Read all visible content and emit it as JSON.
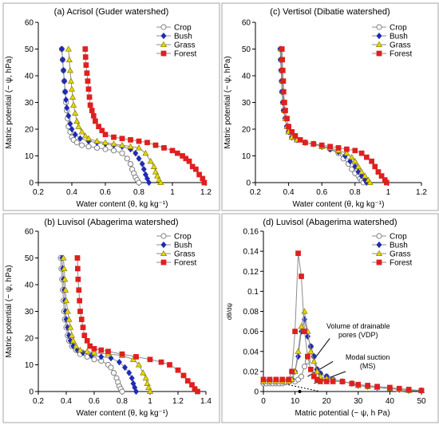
{
  "colors": {
    "crop": "#7f7f7f",
    "bush": "#1f2bb5",
    "grass": "#e5d800",
    "forest": "#e01f1f",
    "line": "#8c8c8c",
    "frame": "#a6a6a6"
  },
  "chart_data": [
    {
      "id": "a",
      "type": "line",
      "title": "(a) Acrisol (Guder watershed)",
      "xlabel": "Water content (θ, kg kg⁻¹)",
      "ylabel": "Matric potential  (− ψ, hPa)",
      "xlim": [
        0.2,
        1.2
      ],
      "ylim": [
        0,
        60
      ],
      "xticks": [
        "0.2",
        "0.4",
        "0.6",
        "0.8",
        "1",
        "1.2"
      ],
      "xtick_values": [
        0.2,
        0.4,
        0.6,
        0.8,
        1.0,
        1.2
      ],
      "yticks": [
        "0",
        "10",
        "20",
        "30",
        "40",
        "50",
        "60"
      ],
      "ytick_values": [
        0,
        10,
        20,
        30,
        40,
        50,
        60
      ],
      "legend_position": "top-right",
      "series": [
        {
          "name": "Crop",
          "marker": "circle",
          "x": [
            0.34,
            0.345,
            0.35,
            0.355,
            0.36,
            0.365,
            0.37,
            0.375,
            0.38,
            0.39,
            0.4,
            0.41,
            0.43,
            0.46,
            0.5,
            0.55,
            0.6,
            0.65,
            0.7,
            0.73,
            0.75,
            0.76,
            0.77,
            0.78,
            0.79,
            0.8
          ],
          "y": [
            50,
            46,
            42,
            38,
            34,
            30,
            27,
            24,
            21,
            19,
            17,
            16,
            15,
            14,
            13.5,
            13,
            12.5,
            12,
            11,
            9,
            7,
            5,
            3.5,
            2,
            1,
            0
          ]
        },
        {
          "name": "Bush",
          "marker": "diamond",
          "x": [
            0.34,
            0.345,
            0.35,
            0.355,
            0.36,
            0.365,
            0.37,
            0.38,
            0.39,
            0.4,
            0.42,
            0.45,
            0.5,
            0.55,
            0.6,
            0.65,
            0.7,
            0.75,
            0.78,
            0.8,
            0.82,
            0.83,
            0.84,
            0.85,
            0.86
          ],
          "y": [
            50,
            46,
            42,
            38,
            34,
            31,
            28,
            25,
            22,
            20,
            18,
            16.5,
            15.5,
            15,
            14.5,
            14,
            13.5,
            12.5,
            11,
            9,
            7,
            5,
            3,
            1.5,
            0
          ]
        },
        {
          "name": "Grass",
          "marker": "triangle",
          "x": [
            0.38,
            0.385,
            0.39,
            0.395,
            0.4,
            0.405,
            0.41,
            0.42,
            0.43,
            0.44,
            0.46,
            0.48,
            0.5,
            0.55,
            0.6,
            0.65,
            0.7,
            0.75,
            0.8,
            0.84,
            0.87,
            0.89,
            0.9,
            0.91,
            0.92,
            0.93
          ],
          "y": [
            50,
            46,
            42,
            38,
            35,
            32,
            29,
            26,
            23,
            21,
            19,
            17.5,
            16.5,
            15.5,
            15,
            14.5,
            14,
            13.5,
            13,
            11,
            8,
            6,
            4,
            2.5,
            1,
            0
          ]
        },
        {
          "name": "Forest",
          "marker": "square",
          "x": [
            0.48,
            0.482,
            0.485,
            0.49,
            0.495,
            0.5,
            0.505,
            0.51,
            0.52,
            0.53,
            0.54,
            0.56,
            0.58,
            0.6,
            0.65,
            0.7,
            0.75,
            0.8,
            0.85,
            0.9,
            0.95,
            1.0,
            1.03,
            1.06,
            1.08,
            1.1,
            1.12,
            1.14,
            1.16,
            1.18,
            1.19
          ],
          "y": [
            50,
            47,
            44,
            41,
            38,
            35,
            32,
            29,
            27,
            25,
            23,
            21,
            19.5,
            18,
            17,
            16.5,
            16,
            15.5,
            15,
            14,
            13,
            12,
            11,
            10,
            9,
            8,
            6,
            5,
            3,
            1.5,
            0
          ]
        }
      ]
    },
    {
      "id": "c",
      "type": "line",
      "title": "(c) Vertisol (Dibatie watershed)",
      "xlabel": "Water content (θ, kg kg⁻¹)",
      "ylabel": "Matric potential  (− ψ, hPa)",
      "xlim": [
        0.2,
        1.2
      ],
      "ylim": [
        0,
        60
      ],
      "xticks": [
        "0.2",
        "0.4",
        "0.6",
        "0.8",
        "1",
        "1.2"
      ],
      "xtick_values": [
        0.2,
        0.4,
        0.6,
        0.8,
        1.0,
        1.2
      ],
      "yticks": [
        "0",
        "10",
        "20",
        "30",
        "40",
        "50",
        "60"
      ],
      "ytick_values": [
        0,
        10,
        20,
        30,
        40,
        50,
        60
      ],
      "legend_position": "top-right",
      "series": [
        {
          "name": "Crop",
          "marker": "circle",
          "x": [
            0.35,
            0.352,
            0.355,
            0.358,
            0.36,
            0.365,
            0.37,
            0.38,
            0.39,
            0.4,
            0.42,
            0.45,
            0.5,
            0.55,
            0.6,
            0.65,
            0.7,
            0.73,
            0.76,
            0.78,
            0.8,
            0.82,
            0.83,
            0.84,
            0.85
          ],
          "y": [
            50,
            46,
            42,
            38,
            34,
            30,
            27,
            24,
            21,
            19,
            17,
            16,
            15,
            14.5,
            13.5,
            12.5,
            11,
            9,
            7,
            5,
            3.5,
            2.5,
            1.5,
            0.8,
            0
          ]
        },
        {
          "name": "Bush",
          "marker": "diamond",
          "x": [
            0.35,
            0.352,
            0.355,
            0.358,
            0.36,
            0.365,
            0.37,
            0.38,
            0.39,
            0.4,
            0.42,
            0.45,
            0.5,
            0.55,
            0.6,
            0.65,
            0.7,
            0.74,
            0.77,
            0.8,
            0.82,
            0.84,
            0.86,
            0.87
          ],
          "y": [
            50,
            46,
            42,
            38,
            34,
            30,
            27,
            24,
            21,
            19,
            17,
            16,
            15,
            14.5,
            13.5,
            12.5,
            11.5,
            10,
            8,
            6,
            4,
            2.5,
            1,
            0
          ]
        },
        {
          "name": "Grass",
          "marker": "triangle",
          "x": [
            0.355,
            0.358,
            0.36,
            0.363,
            0.366,
            0.37,
            0.375,
            0.38,
            0.39,
            0.4,
            0.42,
            0.45,
            0.5,
            0.55,
            0.6,
            0.65,
            0.7,
            0.75,
            0.78,
            0.8,
            0.82,
            0.84,
            0.86,
            0.88,
            0.89
          ],
          "y": [
            50,
            46,
            42,
            38,
            34,
            30,
            27,
            24,
            21,
            19,
            17,
            16,
            15,
            14.5,
            13.5,
            13,
            12,
            11,
            9.5,
            8,
            6,
            4,
            2.5,
            1,
            0
          ]
        },
        {
          "name": "Forest",
          "marker": "square",
          "x": [
            0.36,
            0.362,
            0.365,
            0.368,
            0.37,
            0.375,
            0.38,
            0.39,
            0.4,
            0.42,
            0.44,
            0.47,
            0.5,
            0.55,
            0.6,
            0.65,
            0.7,
            0.75,
            0.8,
            0.84,
            0.87,
            0.9,
            0.92,
            0.94,
            0.96,
            0.98,
            0.99
          ],
          "y": [
            50,
            46,
            42,
            38,
            34,
            30,
            27,
            24,
            21,
            19,
            17.5,
            16,
            15,
            14.5,
            14,
            13.5,
            13,
            12.5,
            12,
            11,
            9.5,
            8,
            6,
            4,
            2.5,
            1,
            0
          ]
        }
      ]
    },
    {
      "id": "b",
      "type": "line",
      "title": "(b) Luvisol (Abagerima watershed)",
      "xlabel": "Water content (θ, kg kg⁻¹)",
      "ylabel": "Matric potential  (− ψ, hPa)",
      "xlim": [
        0.2,
        1.4
      ],
      "ylim": [
        0,
        60
      ],
      "xticks": [
        "0.2",
        "0.4",
        "0.6",
        "0.8",
        "1",
        "1.2",
        "1.4"
      ],
      "xtick_values": [
        0.2,
        0.4,
        0.6,
        0.8,
        1.0,
        1.2,
        1.4
      ],
      "yticks": [
        "0",
        "10",
        "20",
        "30",
        "40",
        "50",
        "60"
      ],
      "ytick_values": [
        0,
        10,
        20,
        30,
        40,
        50,
        60
      ],
      "legend_position": "top-right",
      "series": [
        {
          "name": "Crop",
          "marker": "circle",
          "x": [
            0.36,
            0.365,
            0.37,
            0.375,
            0.38,
            0.385,
            0.39,
            0.4,
            0.41,
            0.42,
            0.44,
            0.47,
            0.5,
            0.55,
            0.6,
            0.65,
            0.7,
            0.72,
            0.74,
            0.76,
            0.77,
            0.78,
            0.79,
            0.8
          ],
          "y": [
            50,
            46,
            42,
            38,
            34,
            30,
            27,
            24,
            21,
            19,
            17,
            15.5,
            14,
            13,
            12,
            11.5,
            10,
            9,
            7,
            5,
            3.5,
            2,
            1,
            0
          ]
        },
        {
          "name": "Bush",
          "marker": "diamond",
          "x": [
            0.37,
            0.375,
            0.38,
            0.385,
            0.39,
            0.395,
            0.4,
            0.41,
            0.42,
            0.43,
            0.45,
            0.48,
            0.52,
            0.58,
            0.65,
            0.72,
            0.78,
            0.82,
            0.85,
            0.87,
            0.88,
            0.89,
            0.9
          ],
          "y": [
            50,
            46,
            42,
            38,
            34,
            30,
            27,
            24,
            21,
            19,
            17,
            15.5,
            14.5,
            13.5,
            13,
            12.5,
            11,
            9,
            7,
            5,
            3,
            1.5,
            0
          ]
        },
        {
          "name": "Grass",
          "marker": "triangle",
          "x": [
            0.38,
            0.385,
            0.39,
            0.395,
            0.4,
            0.41,
            0.42,
            0.43,
            0.44,
            0.45,
            0.47,
            0.5,
            0.55,
            0.6,
            0.7,
            0.8,
            0.88,
            0.92,
            0.95,
            0.97,
            0.98,
            0.99,
            1.0
          ],
          "y": [
            50,
            46,
            42,
            38,
            34,
            30,
            27,
            24,
            21,
            19,
            17,
            15.5,
            15,
            14.5,
            14,
            13.5,
            12,
            10,
            7,
            5,
            3,
            1.5,
            0
          ]
        },
        {
          "name": "Forest",
          "marker": "square",
          "x": [
            0.48,
            0.482,
            0.485,
            0.49,
            0.495,
            0.5,
            0.51,
            0.52,
            0.53,
            0.55,
            0.57,
            0.6,
            0.65,
            0.7,
            0.8,
            0.9,
            1.0,
            1.08,
            1.14,
            1.2,
            1.24,
            1.27,
            1.3,
            1.32,
            1.34
          ],
          "y": [
            50,
            46,
            42,
            38,
            34,
            30,
            27,
            24,
            21,
            19,
            17,
            16,
            15.5,
            15,
            14,
            13,
            12,
            11,
            10,
            8,
            6,
            4,
            2.5,
            1,
            0
          ]
        }
      ]
    },
    {
      "id": "d",
      "type": "line",
      "title": "(d) Luvisol (Abagerima watershed)",
      "xlabel": "Matric potential (− ψ, h Pa)",
      "ylabel": "dθ/dψ",
      "xlim": [
        0,
        50
      ],
      "ylim": [
        0,
        0.16
      ],
      "xticks": [
        "0",
        "10",
        "20",
        "30",
        "40",
        "50"
      ],
      "xtick_values": [
        0,
        10,
        20,
        30,
        40,
        50
      ],
      "yticks": [
        "0",
        "0.02",
        "0.04",
        "0.06",
        "0.08",
        "0.1",
        "0.12",
        "0.14",
        "0.16"
      ],
      "ytick_values": [
        0,
        0.02,
        0.04,
        0.06,
        0.08,
        0.1,
        0.12,
        0.14,
        0.16
      ],
      "legend_position": "top-right",
      "annotations": [
        "Volume of drainable pores (VDP)",
        "Modal suction (MS)"
      ],
      "series": [
        {
          "name": "Crop",
          "marker": "circle",
          "x": [
            0,
            1,
            2,
            3,
            4,
            5,
            6,
            7,
            8,
            9,
            10,
            11,
            12,
            13,
            14,
            15,
            16,
            17,
            18,
            20,
            22,
            25,
            28,
            30,
            33,
            36,
            40,
            43,
            46,
            50
          ],
          "y": [
            0.008,
            0.008,
            0.008,
            0.008,
            0.008,
            0.008,
            0.008,
            0.009,
            0.012,
            0.02,
            0.01,
            0.012,
            0.015,
            0.025,
            0.03,
            0.045,
            0.035,
            0.022,
            0.018,
            0.015,
            0.012,
            0.01,
            0.008,
            0.006,
            0.005,
            0.004,
            0.003,
            0.002,
            0.001,
            0.001
          ]
        },
        {
          "name": "Bush",
          "marker": "diamond",
          "x": [
            0,
            2,
            4,
            6,
            8,
            9,
            10,
            11,
            12,
            13,
            14,
            15,
            16,
            17,
            18,
            20,
            22,
            25,
            28,
            30,
            33,
            36,
            40,
            43,
            46,
            50
          ],
          "y": [
            0.01,
            0.01,
            0.01,
            0.01,
            0.01,
            0.012,
            0.02,
            0.035,
            0.06,
            0.072,
            0.055,
            0.045,
            0.035,
            0.022,
            0.018,
            0.015,
            0.012,
            0.01,
            0.008,
            0.006,
            0.005,
            0.004,
            0.003,
            0.002,
            0.001,
            0.001
          ]
        },
        {
          "name": "Grass",
          "marker": "triangle",
          "x": [
            0,
            2,
            4,
            6,
            8,
            9,
            10,
            11,
            12,
            13,
            14,
            15,
            16,
            17,
            18,
            20,
            22,
            25,
            28,
            30,
            33,
            36,
            40,
            43,
            46,
            50
          ],
          "y": [
            0.01,
            0.01,
            0.01,
            0.01,
            0.01,
            0.012,
            0.02,
            0.04,
            0.065,
            0.08,
            0.06,
            0.04,
            0.03,
            0.02,
            0.015,
            0.013,
            0.012,
            0.01,
            0.008,
            0.006,
            0.005,
            0.004,
            0.003,
            0.002,
            0.001,
            0.001
          ]
        },
        {
          "name": "Forest",
          "marker": "square",
          "x": [
            0,
            2,
            4,
            6,
            8,
            9,
            10,
            11,
            12,
            13,
            14,
            15,
            16,
            17,
            18,
            20,
            22,
            25,
            28,
            30,
            33,
            36,
            40,
            43,
            46,
            50
          ],
          "y": [
            0.012,
            0.012,
            0.012,
            0.012,
            0.012,
            0.02,
            0.06,
            0.138,
            0.115,
            0.06,
            0.035,
            0.022,
            0.015,
            0.012,
            0.01,
            0.01,
            0.01,
            0.01,
            0.008,
            0.007,
            0.006,
            0.005,
            0.004,
            0.003,
            0.002,
            0.001
          ]
        }
      ]
    }
  ]
}
